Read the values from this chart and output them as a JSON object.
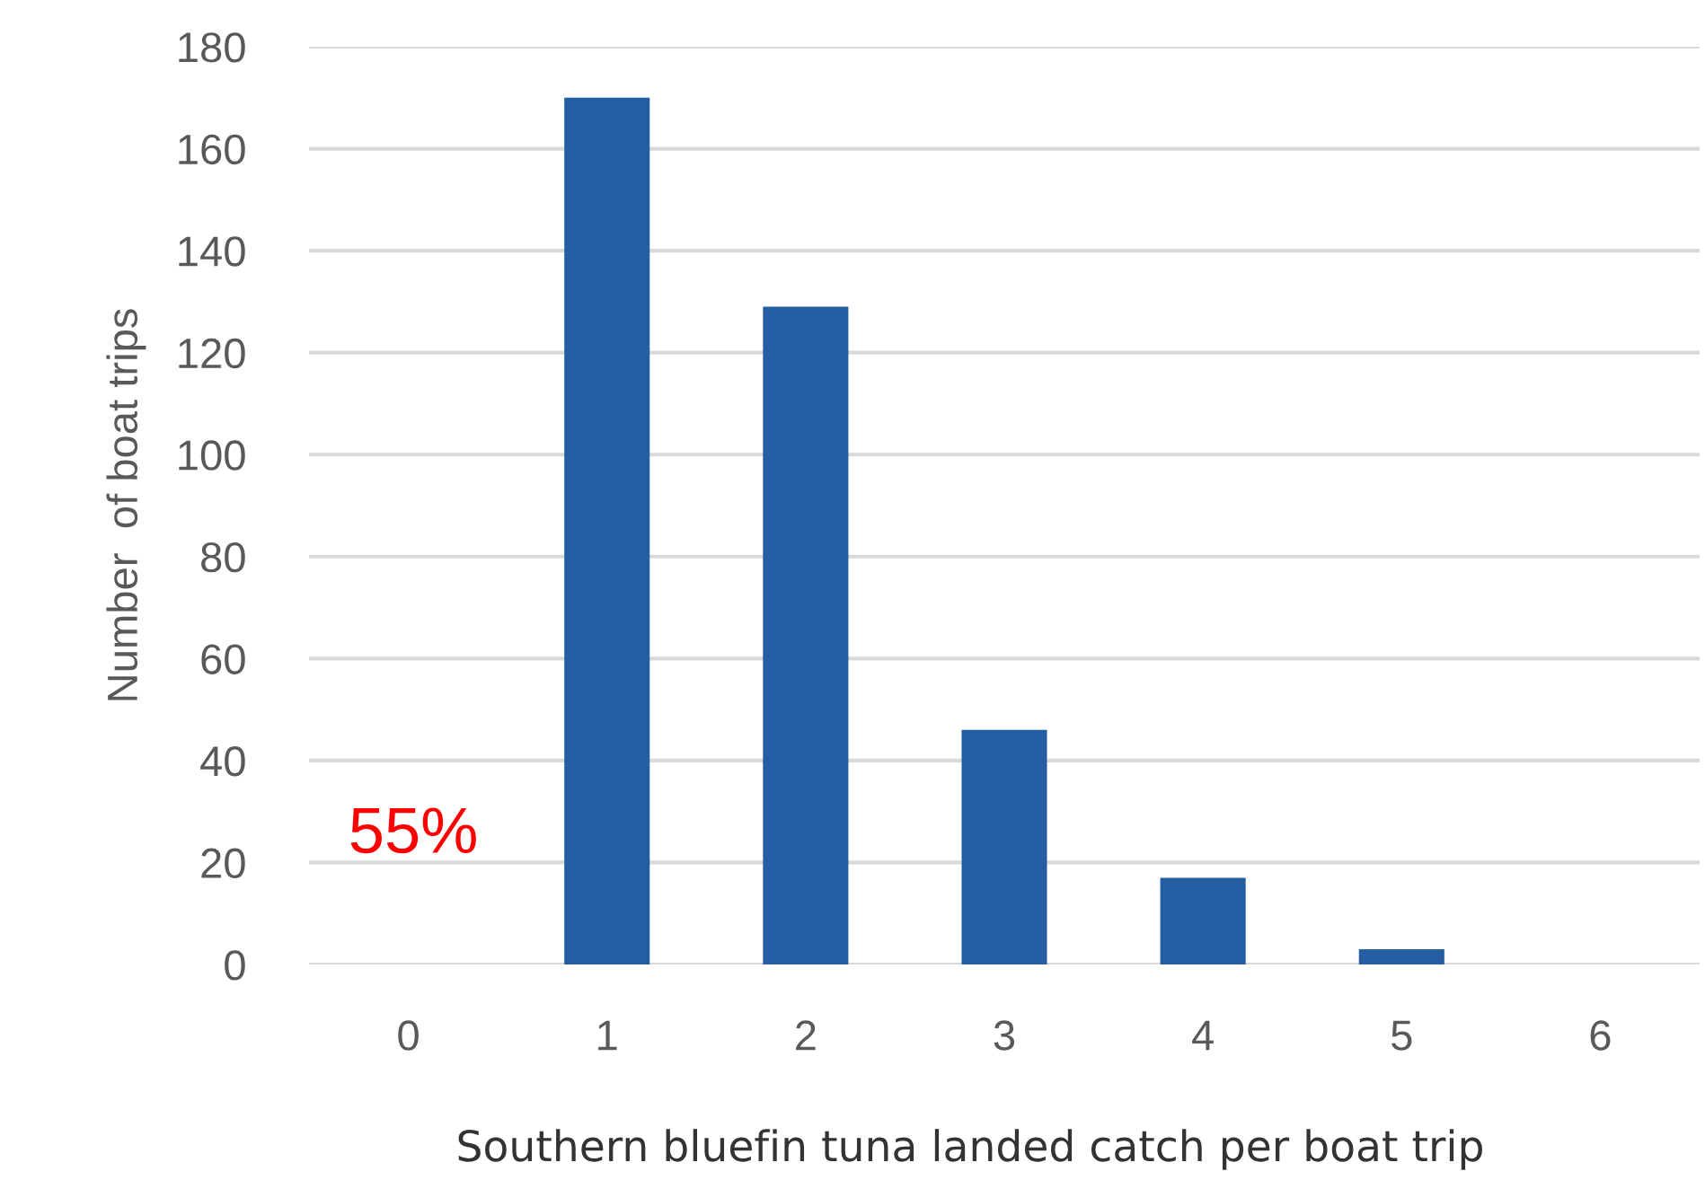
{
  "chart_data": {
    "type": "bar",
    "categories": [
      "0",
      "1",
      "2",
      "3",
      "4",
      "5",
      "6"
    ],
    "values": [
      0,
      170,
      129,
      46,
      17,
      3,
      0
    ],
    "color": "#255ea3",
    "xlabel": "Southern bluefin tuna landed catch per boat trip",
    "ylabel": "Number  of boat trips",
    "ylim": [
      0,
      180
    ],
    "yticks": [
      0,
      20,
      40,
      60,
      80,
      100,
      120,
      140,
      160,
      180
    ],
    "grid": "y",
    "annotations": [
      "55%"
    ]
  }
}
